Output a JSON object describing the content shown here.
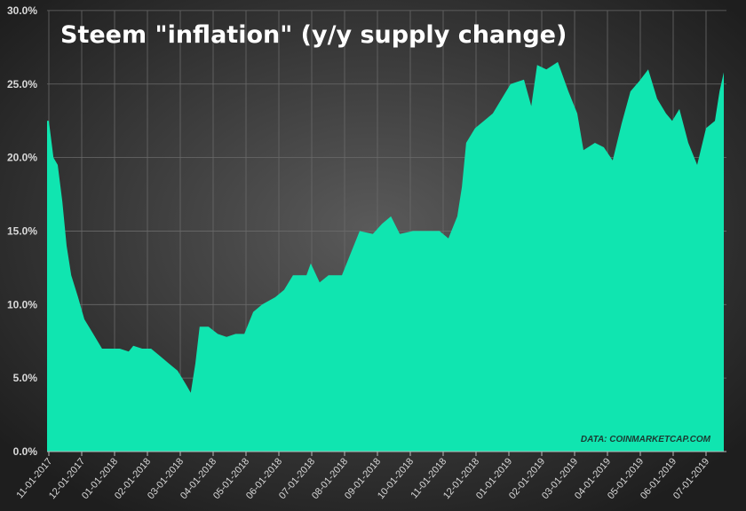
{
  "chart_data": {
    "type": "area",
    "title": "Steem \"inflation\" (y/y supply change)",
    "source": "DATA: COINMARKETCAP.COM",
    "xlabel": "",
    "ylabel": "",
    "ylim": [
      0,
      30
    ],
    "yticks": [
      "0.0%",
      "5.0%",
      "10.0%",
      "15.0%",
      "20.0%",
      "25.0%",
      "30.0%"
    ],
    "xticks": [
      "11-01-2017",
      "12-01-2017",
      "01-01-2018",
      "02-01-2018",
      "03-01-2018",
      "04-01-2018",
      "05-01-2018",
      "06-01-2018",
      "07-01-2018",
      "08-01-2018",
      "09-01-2018",
      "10-01-2018",
      "11-01-2018",
      "12-01-2018",
      "01-01-2019",
      "02-01-2019",
      "03-01-2019",
      "04-01-2019",
      "05-01-2019",
      "06-01-2019",
      "07-01-2019"
    ],
    "x_unit": "months since 11-01-2017",
    "grid": true,
    "fill_color": "#10e5b0",
    "points": [
      [
        0,
        22.5
      ],
      [
        0.14,
        20
      ],
      [
        0.27,
        19.5
      ],
      [
        0.41,
        17
      ],
      [
        0.54,
        14
      ],
      [
        0.68,
        12
      ],
      [
        0.89,
        10.5
      ],
      [
        1.08,
        9
      ],
      [
        1.35,
        8
      ],
      [
        1.62,
        7
      ],
      [
        1.89,
        7
      ],
      [
        2.16,
        7
      ],
      [
        2.43,
        6.8
      ],
      [
        2.57,
        7.2
      ],
      [
        2.84,
        7
      ],
      [
        3.11,
        7
      ],
      [
        3.38,
        6.5
      ],
      [
        3.65,
        6
      ],
      [
        3.92,
        5.5
      ],
      [
        4.19,
        4.5
      ],
      [
        4.32,
        4
      ],
      [
        4.46,
        6
      ],
      [
        4.59,
        8.5
      ],
      [
        4.86,
        8.5
      ],
      [
        5.14,
        8
      ],
      [
        5.41,
        7.8
      ],
      [
        5.68,
        8
      ],
      [
        5.95,
        8
      ],
      [
        6.22,
        9.5
      ],
      [
        6.49,
        10
      ],
      [
        6.89,
        10.5
      ],
      [
        7.16,
        11
      ],
      [
        7.43,
        12
      ],
      [
        7.84,
        12
      ],
      [
        7.97,
        12.8
      ],
      [
        8.24,
        11.5
      ],
      [
        8.51,
        12
      ],
      [
        8.92,
        12
      ],
      [
        9.19,
        13.5
      ],
      [
        9.46,
        15
      ],
      [
        9.86,
        14.8
      ],
      [
        10.14,
        15.5
      ],
      [
        10.41,
        16
      ],
      [
        10.68,
        14.8
      ],
      [
        11.08,
        15
      ],
      [
        11.49,
        15
      ],
      [
        11.89,
        15
      ],
      [
        12.16,
        14.5
      ],
      [
        12.43,
        16
      ],
      [
        12.57,
        18
      ],
      [
        12.7,
        21
      ],
      [
        12.97,
        22
      ],
      [
        13.24,
        22.5
      ],
      [
        13.51,
        23
      ],
      [
        13.78,
        24
      ],
      [
        14.05,
        25
      ],
      [
        14.46,
        25.3
      ],
      [
        14.68,
        23.5
      ],
      [
        14.86,
        26.3
      ],
      [
        15.14,
        26
      ],
      [
        15.49,
        26.5
      ],
      [
        15.81,
        24.5
      ],
      [
        16.08,
        23
      ],
      [
        16.27,
        20.5
      ],
      [
        16.62,
        21
      ],
      [
        16.89,
        20.7
      ],
      [
        17.16,
        19.8
      ],
      [
        17.43,
        22.3
      ],
      [
        17.7,
        24.5
      ],
      [
        17.97,
        25.2
      ],
      [
        18.24,
        26
      ],
      [
        18.51,
        24
      ],
      [
        18.78,
        23
      ],
      [
        18.97,
        22.5
      ],
      [
        19.19,
        23.3
      ],
      [
        19.46,
        21
      ],
      [
        19.73,
        19.5
      ],
      [
        20,
        22
      ],
      [
        20.27,
        22.5
      ],
      [
        20.41,
        24.5
      ],
      [
        20.54,
        25.8
      ]
    ]
  }
}
